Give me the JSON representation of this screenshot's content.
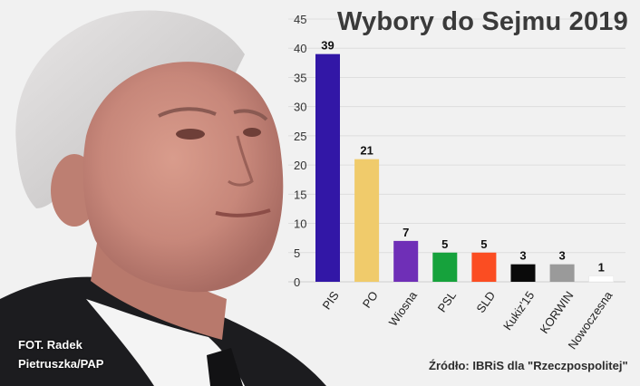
{
  "chart_data": {
    "type": "bar",
    "title": "Wybory do Sejmu 2019",
    "categories": [
      "PIS",
      "PO",
      "Wiosna",
      "PSL",
      "SLD",
      "Kukiz'15",
      "KORWIN",
      "Nowoczesna"
    ],
    "values": [
      39,
      21,
      7,
      5,
      5,
      3,
      3,
      1
    ],
    "colors": [
      "#3217a6",
      "#f0cb6b",
      "#6f2fb7",
      "#16a23c",
      "#fb4d22",
      "#0a0a0a",
      "#9a9a9a",
      "#ffffff"
    ],
    "ylim": [
      0,
      45
    ],
    "yticks": [
      0,
      5,
      10,
      15,
      20,
      25,
      30,
      35,
      40,
      45
    ],
    "xlabel": "",
    "ylabel": "",
    "grid": true
  },
  "photo_credit": [
    "FOT. Radek",
    "Pietruszka/PAP"
  ],
  "source": "Źródło: IBRiS dla \"Rzeczpospolitej\""
}
